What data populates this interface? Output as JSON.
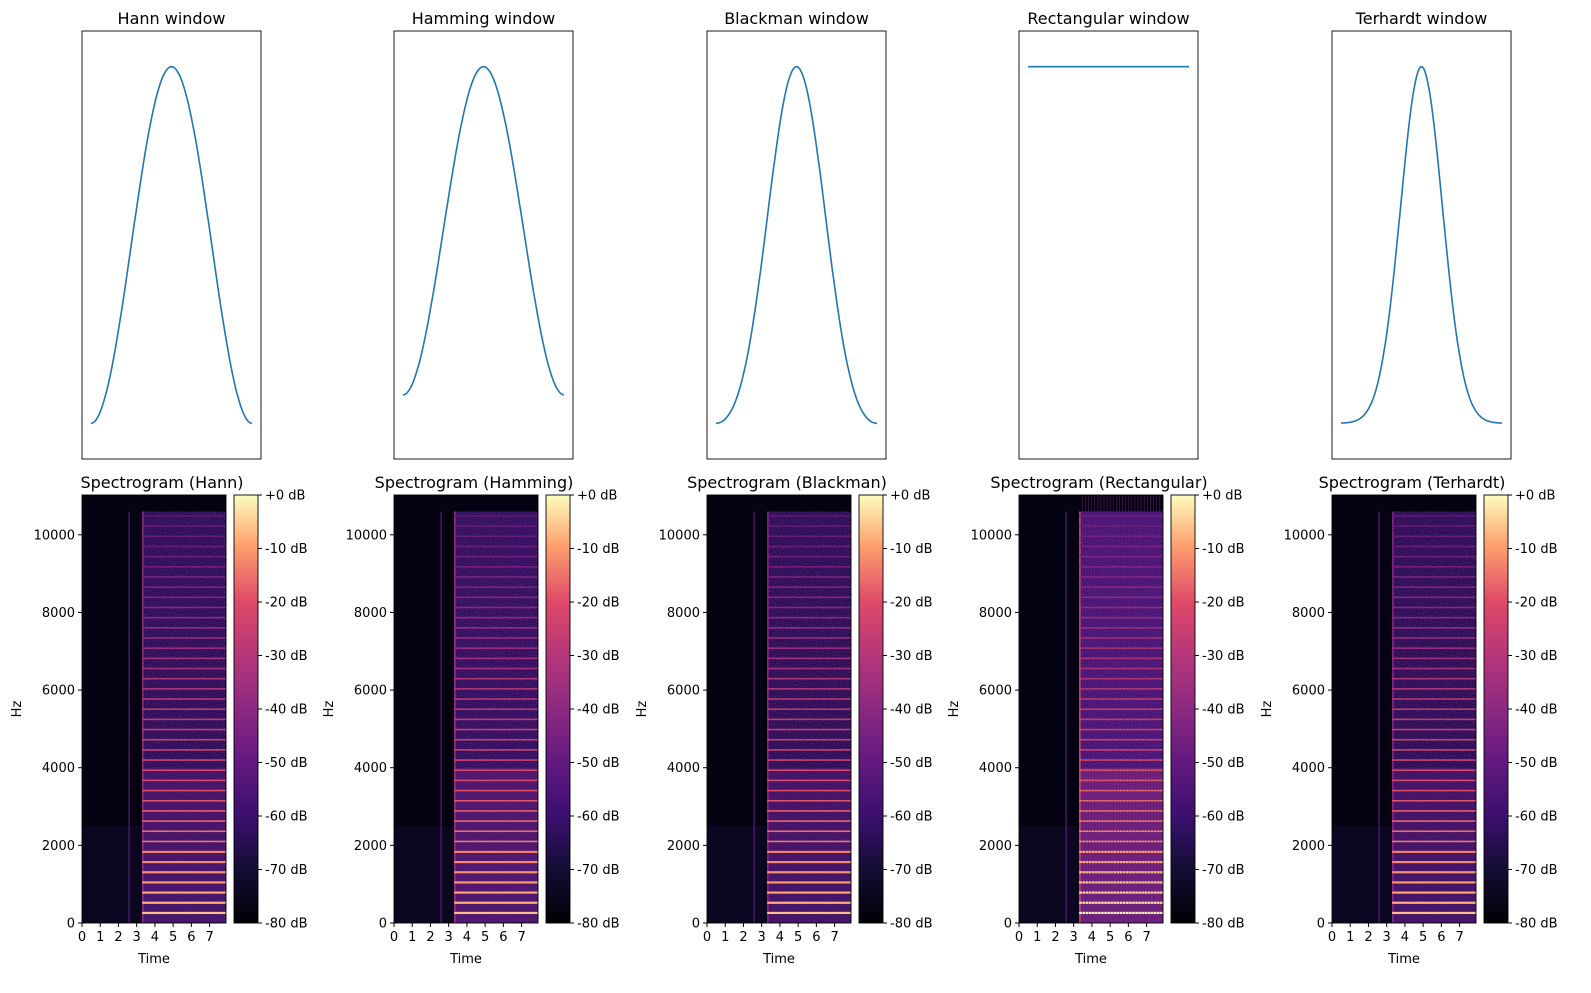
{
  "chart_data": [
    {
      "type": "line",
      "title": "Hann window",
      "window": "hann",
      "ylim": [
        -0.1,
        1.1
      ],
      "ticks": false
    },
    {
      "type": "line",
      "title": "Hamming window",
      "window": "hamming",
      "ylim": [
        -0.1,
        1.1
      ],
      "ticks": false
    },
    {
      "type": "line",
      "title": "Blackman window",
      "window": "blackman",
      "ylim": [
        -0.1,
        1.1
      ],
      "ticks": false
    },
    {
      "type": "line",
      "title": "Rectangular window",
      "window": "rectangular",
      "ylim": [
        -0.1,
        1.1
      ],
      "ticks": false
    },
    {
      "type": "line",
      "title": "Terhardt window",
      "window": "terhardt",
      "ylim": [
        -0.1,
        1.1
      ],
      "ticks": false
    },
    {
      "type": "heatmap",
      "title": "Spectrogram (Hann)",
      "window": "hann",
      "leakage": 0.2
    },
    {
      "type": "heatmap",
      "title": "Spectrogram (Hamming)",
      "window": "hamming",
      "leakage": 0.35
    },
    {
      "type": "heatmap",
      "title": "Spectrogram (Blackman)",
      "window": "blackman",
      "leakage": 0.15
    },
    {
      "type": "heatmap",
      "title": "Spectrogram (Rectangular)",
      "window": "rectangular",
      "leakage": 0.9
    },
    {
      "type": "heatmap",
      "title": "Spectrogram (Terhardt)",
      "window": "terhardt",
      "leakage": 0.15
    }
  ],
  "spectrogram_axes": {
    "xlabel": "Time",
    "ylabel": "Hz",
    "xlim": [
      0,
      7.9
    ],
    "ylim": [
      0,
      11025
    ],
    "xticks": [
      "0",
      "1",
      "2",
      "3",
      "4",
      "5",
      "6",
      "7"
    ],
    "yticks": [
      "0",
      "2000",
      "4000",
      "6000",
      "8000",
      "10000"
    ],
    "onset_time": 3.3,
    "click_time": 2.55,
    "fundamental_hz": 262,
    "colormap": "magma",
    "colorbar_ticks": [
      "+0 dB",
      "-10 dB",
      "-20 dB",
      "-30 dB",
      "-40 dB",
      "-50 dB",
      "-60 dB",
      "-70 dB",
      "-80 dB"
    ],
    "line_color": "#1f77b4"
  }
}
